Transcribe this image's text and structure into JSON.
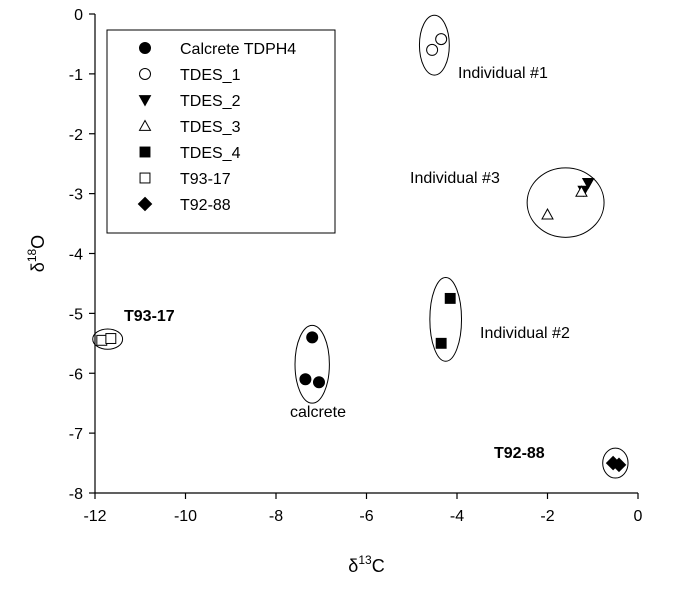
{
  "chart_data": {
    "type": "scatter",
    "xlabel": {
      "prefix": "δ",
      "sup": "13",
      "suffix": "C"
    },
    "ylabel": {
      "prefix": "δ",
      "sup": "18",
      "suffix": "O"
    },
    "xlim": [
      -12,
      0
    ],
    "ylim": [
      -8,
      0
    ],
    "xticks": [
      -12,
      -10,
      -8,
      -6,
      -4,
      -2,
      0
    ],
    "yticks": [
      0,
      -1,
      -2,
      -3,
      -4,
      -5,
      -6,
      -7,
      -8
    ],
    "legend_position": "top-left",
    "series": [
      {
        "name": "Calcrete TDPH4",
        "marker": "filled-circle",
        "points": [
          [
            -7.2,
            -5.4
          ],
          [
            -7.35,
            -6.1
          ],
          [
            -7.05,
            -6.15
          ]
        ]
      },
      {
        "name": "TDES_1",
        "marker": "open-circle",
        "points": [
          [
            -4.55,
            -0.6
          ],
          [
            -4.35,
            -0.42
          ]
        ]
      },
      {
        "name": "TDES_2",
        "marker": "filled-triangle-down",
        "points": [
          [
            -1.1,
            -2.82
          ],
          [
            -1.2,
            -2.95
          ]
        ]
      },
      {
        "name": "TDES_3",
        "marker": "open-triangle-up",
        "points": [
          [
            -2.0,
            -3.35
          ],
          [
            -1.25,
            -2.97
          ]
        ]
      },
      {
        "name": "TDES_4",
        "marker": "filled-square",
        "points": [
          [
            -4.15,
            -4.75
          ],
          [
            -4.35,
            -5.5
          ]
        ]
      },
      {
        "name": "T93-17",
        "marker": "open-square",
        "points": [
          [
            -11.85,
            -5.45
          ],
          [
            -11.65,
            -5.42
          ]
        ]
      },
      {
        "name": "T92-88",
        "marker": "filled-diamond",
        "points": [
          [
            -0.55,
            -7.5
          ],
          [
            -0.42,
            -7.53
          ]
        ]
      }
    ],
    "groups": [
      {
        "label": "Individual #1",
        "bold": false,
        "cx": -4.5,
        "cy": -0.52,
        "rx": 0.33,
        "ry": 0.5
      },
      {
        "label": "Individual #3",
        "bold": false,
        "cx": -1.6,
        "cy": -3.15,
        "rx": 0.85,
        "ry": 0.58
      },
      {
        "label": "Individual #2",
        "bold": false,
        "cx": -4.25,
        "cy": -5.1,
        "rx": 0.35,
        "ry": 0.7
      },
      {
        "label": "calcrete",
        "bold": false,
        "cx": -7.2,
        "cy": -5.85,
        "rx": 0.38,
        "ry": 0.65
      },
      {
        "label": "T93-17",
        "bold": true,
        "cx": -11.72,
        "cy": -5.43,
        "rx": 0.33,
        "ry": 0.17
      },
      {
        "label": "T92-88",
        "bold": true,
        "cx": -0.5,
        "cy": -7.5,
        "rx": 0.28,
        "ry": 0.25
      }
    ]
  }
}
